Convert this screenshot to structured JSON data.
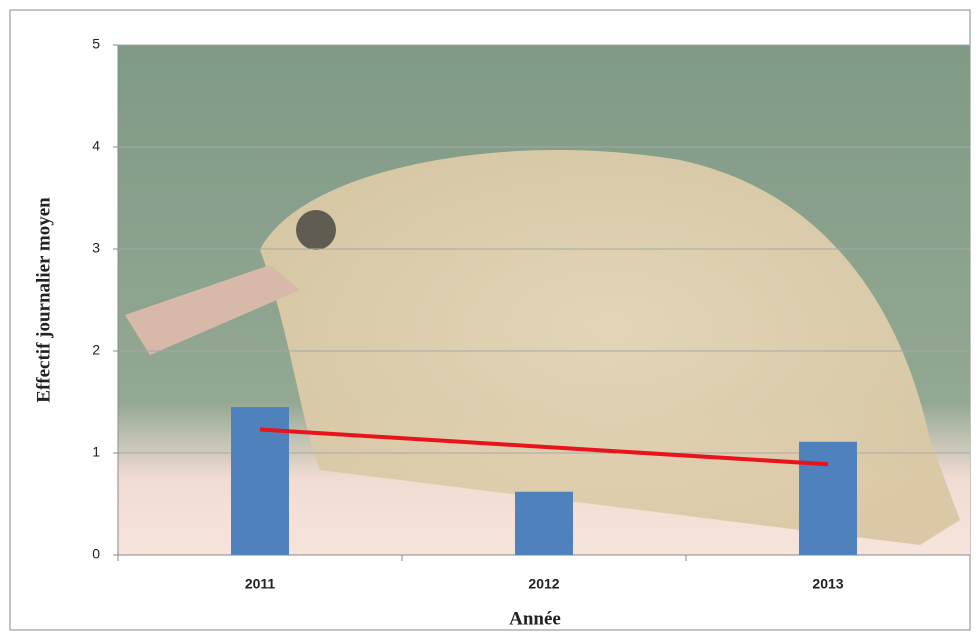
{
  "chart_data": {
    "type": "bar",
    "x_label": "Année",
    "y_label": "Effectif journalier moyen",
    "categories": [
      "2011",
      "2012",
      "2013"
    ],
    "values": [
      1.45,
      0.62,
      1.11
    ],
    "color": "#4f81bd",
    "trend": {
      "type": "line",
      "values": [
        1.23,
        1.06,
        0.89
      ],
      "color": "#e8141b"
    },
    "ylim": [
      0,
      5
    ],
    "yticks": [
      0,
      1,
      2,
      3,
      4,
      5
    ],
    "grid": true
  }
}
